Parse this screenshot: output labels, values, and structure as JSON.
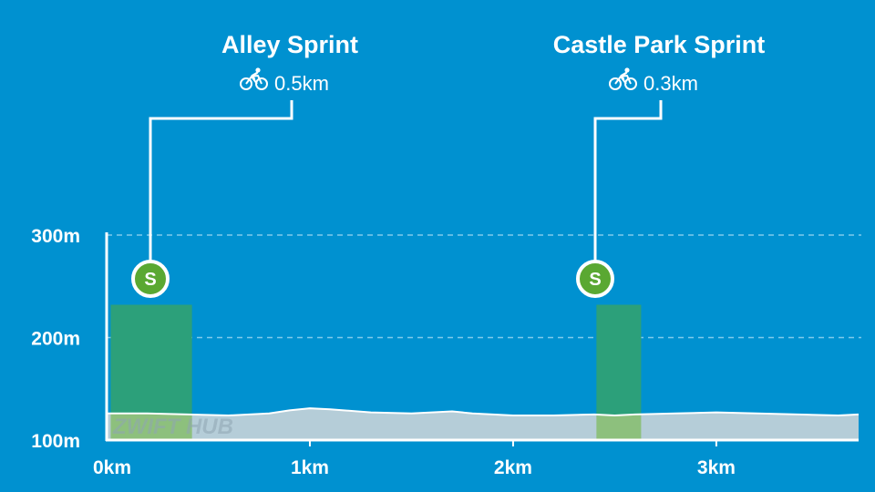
{
  "chart_data": {
    "type": "area",
    "title": "",
    "xlabel": "",
    "ylabel": "",
    "xlim": [
      0,
      3.7
    ],
    "ylim": [
      100,
      300
    ],
    "x_ticks": [
      {
        "value": 0,
        "label": "0km"
      },
      {
        "value": 1,
        "label": "1km"
      },
      {
        "value": 2,
        "label": "2km"
      },
      {
        "value": 3,
        "label": "3km"
      }
    ],
    "y_ticks": [
      {
        "value": 100,
        "label": "100m"
      },
      {
        "value": 200,
        "label": "200m"
      },
      {
        "value": 300,
        "label": "300m"
      }
    ],
    "grid": {
      "horizontal_dashed": [
        200,
        300
      ]
    },
    "elevation_profile": {
      "x": [
        0,
        0.2,
        0.4,
        0.6,
        0.8,
        0.9,
        1.0,
        1.1,
        1.3,
        1.5,
        1.7,
        1.8,
        2.0,
        2.2,
        2.4,
        2.5,
        2.6,
        2.8,
        3.0,
        3.2,
        3.4,
        3.6,
        3.7
      ],
      "y": [
        126,
        126,
        125,
        124,
        126,
        129,
        131,
        130,
        127,
        126,
        128,
        126,
        124,
        124,
        125,
        124,
        125,
        126,
        127,
        126,
        125,
        124,
        125
      ]
    },
    "segments": [
      {
        "name": "Alley Sprint",
        "distance": "0.5km",
        "start": 0.02,
        "end": 0.42,
        "badge": "S",
        "color": "#2ca07a"
      },
      {
        "name": "Castle Park Sprint",
        "distance": "0.3km",
        "start": 2.41,
        "end": 2.63,
        "badge": "S",
        "color": "#2ca07a"
      }
    ],
    "watermark": "ZWIFT HUB",
    "colors": {
      "background": "#0091d0",
      "profile_fill": "#b5cdd8",
      "profile_line": "#ffffff",
      "segment_fill": "#2ca07a",
      "segment_profile_fill": "#8dc07d",
      "badge_fill": "#5aa832",
      "badge_ring": "#ffffff"
    },
    "icon": "bicycle-icon"
  }
}
